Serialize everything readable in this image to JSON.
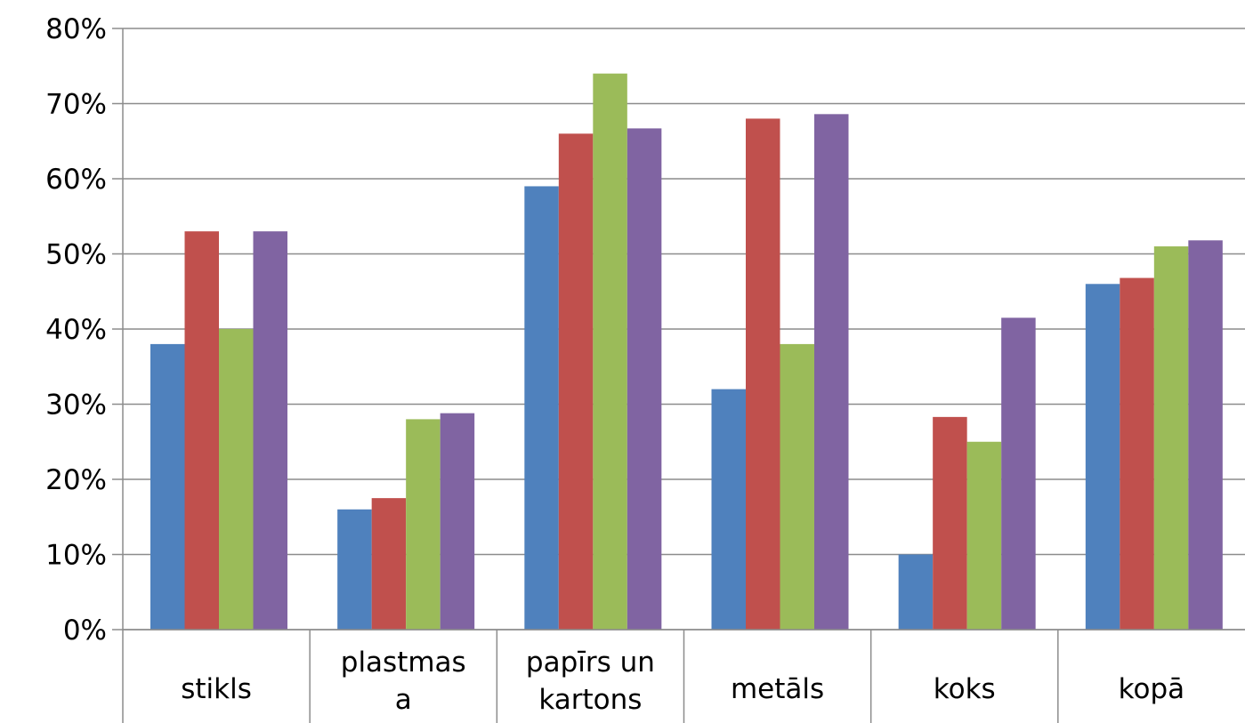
{
  "chart_data": {
    "type": "bar",
    "title": "",
    "xlabel": "",
    "ylabel": "",
    "ylim": [
      0,
      0.8
    ],
    "y_ticks": [
      "0%",
      "10%",
      "20%",
      "30%",
      "40%",
      "50%",
      "60%",
      "70%",
      "80%"
    ],
    "grid": "horizontal",
    "legend": "none",
    "categories": [
      [
        "stikls"
      ],
      [
        "plastmas",
        "a"
      ],
      [
        "papīrs un",
        "kartons"
      ],
      [
        "metāls"
      ],
      [
        "koks"
      ],
      [
        "kopā"
      ]
    ],
    "series": [
      {
        "color": "#4f81bd",
        "values": [
          0.38,
          0.16,
          0.59,
          0.32,
          0.1,
          0.46
        ]
      },
      {
        "color": "#c0504d",
        "values": [
          0.53,
          0.175,
          0.66,
          0.68,
          0.283,
          0.468
        ]
      },
      {
        "color": "#9bbb59",
        "values": [
          0.4,
          0.28,
          0.74,
          0.38,
          0.25,
          0.51
        ]
      },
      {
        "color": "#8064a2",
        "values": [
          0.53,
          0.288,
          0.667,
          0.686,
          0.415,
          0.518
        ]
      }
    ]
  }
}
